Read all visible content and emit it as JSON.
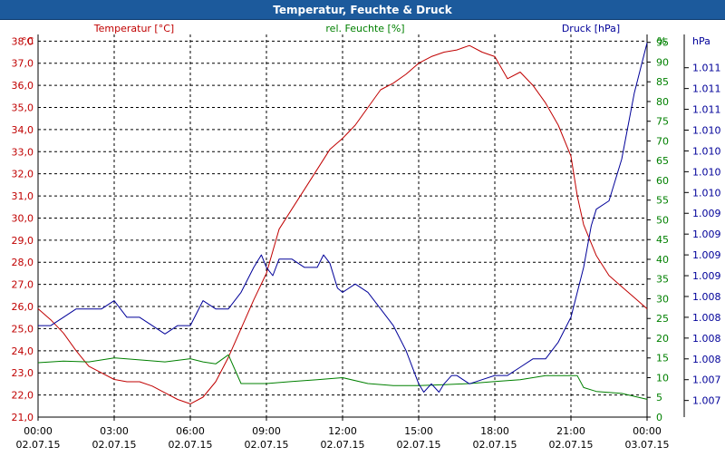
{
  "window": {
    "title": "Temperatur, Feuchte & Druck"
  },
  "chart_data": {
    "type": "line",
    "title": "Temperatur, Feuchte & Druck",
    "colors": {
      "temperature": "#c00000",
      "humidity": "#008000",
      "pressure": "#000099",
      "title_bar": "#1c5a9c",
      "grid": "#000000"
    },
    "x_ticks": [
      {
        "time": "00:00",
        "date": "02.07.15",
        "h": 0
      },
      {
        "time": "03:00",
        "date": "02.07.15",
        "h": 3
      },
      {
        "time": "06:00",
        "date": "02.07.15",
        "h": 6
      },
      {
        "time": "09:00",
        "date": "02.07.15",
        "h": 9
      },
      {
        "time": "12:00",
        "date": "02.07.15",
        "h": 12
      },
      {
        "time": "15:00",
        "date": "02.07.15",
        "h": 15
      },
      {
        "time": "18:00",
        "date": "02.07.15",
        "h": 18
      },
      {
        "time": "21:00",
        "date": "02.07.15",
        "h": 21
      },
      {
        "time": "00:00",
        "date": "03.07.15",
        "h": 24
      }
    ],
    "xlim": [
      0,
      24
    ],
    "axes": {
      "temperature": {
        "label": "Temperatur [°C]",
        "unit": "°C",
        "ylim": [
          21.0,
          38.3
        ],
        "ticks": [
          "21,0",
          "22,0",
          "23,0",
          "24,0",
          "25,0",
          "26,0",
          "27,0",
          "28,0",
          "29,0",
          "30,0",
          "31,0",
          "32,0",
          "33,0",
          "34,0",
          "35,0",
          "36,0",
          "37,0",
          "38,0"
        ],
        "tick_values": [
          21,
          22,
          23,
          24,
          25,
          26,
          27,
          28,
          29,
          30,
          31,
          32,
          33,
          34,
          35,
          36,
          37,
          38
        ]
      },
      "humidity": {
        "label": "rel. Feuchte [%]",
        "unit": "%",
        "ylim": [
          0,
          97
        ],
        "ticks": [
          "0",
          "5",
          "10",
          "15",
          "20",
          "25",
          "30",
          "35",
          "40",
          "45",
          "50",
          "55",
          "60",
          "65",
          "70",
          "75",
          "80",
          "85",
          "90",
          "95"
        ],
        "tick_values": [
          0,
          5,
          10,
          15,
          20,
          25,
          30,
          35,
          40,
          45,
          50,
          55,
          60,
          65,
          70,
          75,
          80,
          85,
          90,
          95
        ]
      },
      "pressure": {
        "label": "Druck [hPa]",
        "unit": "hPa",
        "ylim": [
          1006.8,
          1011.4
        ],
        "ticks": [
          "1.007",
          "1.007",
          "1.008",
          "1.008",
          "1.008",
          "1.008",
          "1.009",
          "1.009",
          "1.009",
          "1.009",
          "1.010",
          "1.010",
          "1.010",
          "1.010",
          "1.011",
          "1.011",
          "1.011"
        ],
        "tick_values": [
          1007.0,
          1007.25,
          1007.5,
          1007.75,
          1008.0,
          1008.25,
          1008.5,
          1008.75,
          1009.0,
          1009.25,
          1009.5,
          1009.75,
          1010.0,
          1010.25,
          1010.5,
          1010.75,
          1011.0
        ]
      }
    },
    "series": [
      {
        "name": "Temperatur [°C]",
        "axis": "temperature",
        "x": [
          0,
          0.5,
          1,
          1.5,
          2,
          2.5,
          3,
          3.5,
          4,
          4.5,
          5,
          5.5,
          6,
          6.5,
          7,
          7.5,
          8,
          8.5,
          9,
          9.5,
          10,
          10.5,
          11,
          11.5,
          12,
          12.5,
          13,
          13.5,
          14,
          14.5,
          15,
          15.5,
          16,
          16.5,
          17,
          17.5,
          18,
          18.5,
          19,
          19.5,
          20,
          20.5,
          21,
          21.25,
          21.5,
          22,
          22.5,
          23,
          23.5,
          24
        ],
        "values": [
          25.9,
          25.4,
          24.8,
          24.0,
          23.3,
          23.0,
          22.7,
          22.6,
          22.6,
          22.4,
          22.1,
          21.8,
          21.6,
          21.9,
          22.6,
          23.7,
          25.0,
          26.3,
          27.5,
          29.5,
          30.4,
          31.3,
          32.2,
          33.1,
          33.6,
          34.2,
          35.0,
          35.8,
          36.1,
          36.5,
          37.0,
          37.3,
          37.5,
          37.6,
          37.8,
          37.5,
          37.3,
          36.3,
          36.6,
          36.0,
          35.2,
          34.2,
          32.8,
          31.0,
          29.7,
          28.3,
          27.4,
          26.9,
          26.4,
          25.9
        ]
      },
      {
        "name": "rel. Feuchte [%]",
        "axis": "humidity",
        "x": [
          0,
          1,
          2,
          3,
          4,
          5,
          6,
          6.5,
          7,
          7.5,
          8,
          9,
          10,
          11,
          12,
          13,
          14,
          15,
          16,
          17,
          18,
          19,
          20,
          20.5,
          21,
          21.25,
          21.5,
          22,
          23,
          24
        ],
        "values": [
          13.8,
          14.2,
          14.0,
          15.0,
          14.5,
          14.0,
          14.8,
          14.0,
          13.5,
          15.8,
          8.5,
          8.5,
          9.0,
          9.5,
          10.0,
          8.5,
          8.0,
          8.0,
          8.2,
          8.5,
          9.0,
          9.5,
          10.5,
          10.5,
          10.5,
          10.5,
          7.5,
          6.5,
          6.0,
          4.5
        ]
      },
      {
        "name": "Druck [hPa]",
        "axis": "pressure",
        "x": [
          0,
          0.5,
          1,
          1.5,
          2,
          2.5,
          3,
          3.5,
          4,
          4.5,
          5,
          5.5,
          6,
          6.5,
          7,
          7.5,
          8,
          8.5,
          8.8,
          9,
          9.25,
          9.5,
          10,
          10.5,
          11,
          11.25,
          11.5,
          11.8,
          12,
          12.5,
          13,
          13.5,
          14,
          14.5,
          15,
          15.2,
          15.5,
          15.8,
          16,
          16.3,
          16.5,
          17,
          17.5,
          18,
          18.5,
          19,
          19.5,
          20,
          20.5,
          21,
          21.5,
          21.8,
          22,
          22.5,
          23,
          23.5,
          24
        ],
        "values": [
          1007.9,
          1007.9,
          1008.0,
          1008.1,
          1008.1,
          1008.1,
          1008.2,
          1008.0,
          1008.0,
          1007.9,
          1007.8,
          1007.9,
          1007.9,
          1008.2,
          1008.1,
          1008.1,
          1008.3,
          1008.6,
          1008.75,
          1008.6,
          1008.5,
          1008.7,
          1008.7,
          1008.6,
          1008.6,
          1008.75,
          1008.65,
          1008.35,
          1008.3,
          1008.4,
          1008.3,
          1008.1,
          1007.9,
          1007.6,
          1007.2,
          1007.1,
          1007.2,
          1007.1,
          1007.2,
          1007.3,
          1007.3,
          1007.2,
          1007.25,
          1007.3,
          1007.3,
          1007.4,
          1007.5,
          1007.5,
          1007.7,
          1008.0,
          1008.6,
          1009.1,
          1009.3,
          1009.4,
          1009.9,
          1010.7,
          1011.3
        ]
      }
    ]
  }
}
